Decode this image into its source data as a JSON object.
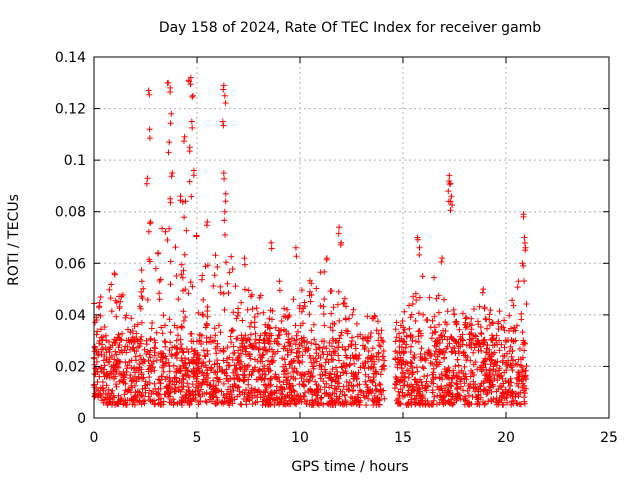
{
  "chart_data": {
    "type": "scatter",
    "title": "Day 158 of 2024, Rate Of TEC Index for receiver gamb",
    "xlabel": "GPS time / hours",
    "ylabel": "ROTI / TECUs",
    "xlim": [
      0,
      25
    ],
    "ylim": [
      0,
      0.14
    ],
    "xticks": [
      0,
      5,
      10,
      15,
      20,
      25
    ],
    "xtick_labels": [
      "0",
      "5",
      "10",
      "15",
      "20",
      "25"
    ],
    "yticks": [
      0,
      0.02,
      0.04,
      0.06,
      0.08,
      0.1,
      0.12,
      0.14
    ],
    "ytick_labels": [
      "0",
      "0.02",
      "0.04",
      "0.06",
      "0.08",
      "0.1",
      "0.12",
      "0.14"
    ],
    "grid": true,
    "marker": "+",
    "color": "#ff0000",
    "data_gap_hours": [
      14.1,
      14.6
    ],
    "x_range_hours": [
      0,
      21.0
    ],
    "typical_band": [
      0.005,
      0.03
    ],
    "envelope": [
      {
        "x": 0.0,
        "y": 0.045
      },
      {
        "x": 0.5,
        "y": 0.05
      },
      {
        "x": 1.0,
        "y": 0.06
      },
      {
        "x": 1.5,
        "y": 0.045
      },
      {
        "x": 2.0,
        "y": 0.04
      },
      {
        "x": 2.5,
        "y": 0.08
      },
      {
        "x": 3.0,
        "y": 0.06
      },
      {
        "x": 3.5,
        "y": 0.1
      },
      {
        "x": 4.0,
        "y": 0.07
      },
      {
        "x": 4.5,
        "y": 0.11
      },
      {
        "x": 5.0,
        "y": 0.07
      },
      {
        "x": 5.5,
        "y": 0.06
      },
      {
        "x": 6.0,
        "y": 0.07
      },
      {
        "x": 6.5,
        "y": 0.08
      },
      {
        "x": 7.0,
        "y": 0.05
      },
      {
        "x": 8.0,
        "y": 0.05
      },
      {
        "x": 9.0,
        "y": 0.045
      },
      {
        "x": 10.0,
        "y": 0.05
      },
      {
        "x": 11.0,
        "y": 0.06
      },
      {
        "x": 12.0,
        "y": 0.05
      },
      {
        "x": 13.0,
        "y": 0.04
      },
      {
        "x": 14.0,
        "y": 0.04
      },
      {
        "x": 15.0,
        "y": 0.04
      },
      {
        "x": 16.0,
        "y": 0.06
      },
      {
        "x": 17.0,
        "y": 0.05
      },
      {
        "x": 18.0,
        "y": 0.04
      },
      {
        "x": 19.0,
        "y": 0.045
      },
      {
        "x": 20.0,
        "y": 0.04
      },
      {
        "x": 21.0,
        "y": 0.06
      }
    ],
    "spikes": [
      {
        "x": 2.65,
        "y": 0.127
      },
      {
        "x": 2.7,
        "y": 0.112
      },
      {
        "x": 2.6,
        "y": 0.093
      },
      {
        "x": 2.75,
        "y": 0.076
      },
      {
        "x": 3.1,
        "y": 0.064
      },
      {
        "x": 3.6,
        "y": 0.13
      },
      {
        "x": 3.7,
        "y": 0.128
      },
      {
        "x": 3.75,
        "y": 0.118
      },
      {
        "x": 3.65,
        "y": 0.107
      },
      {
        "x": 3.8,
        "y": 0.095
      },
      {
        "x": 3.7,
        "y": 0.085
      },
      {
        "x": 4.2,
        "y": 0.086
      },
      {
        "x": 4.4,
        "y": 0.109
      },
      {
        "x": 4.6,
        "y": 0.131
      },
      {
        "x": 4.7,
        "y": 0.132
      },
      {
        "x": 4.8,
        "y": 0.125
      },
      {
        "x": 4.75,
        "y": 0.115
      },
      {
        "x": 4.65,
        "y": 0.105
      },
      {
        "x": 4.85,
        "y": 0.096
      },
      {
        "x": 5.5,
        "y": 0.076
      },
      {
        "x": 6.3,
        "y": 0.129
      },
      {
        "x": 6.35,
        "y": 0.125
      },
      {
        "x": 6.25,
        "y": 0.115
      },
      {
        "x": 6.3,
        "y": 0.095
      },
      {
        "x": 6.4,
        "y": 0.087
      },
      {
        "x": 6.35,
        "y": 0.08
      },
      {
        "x": 7.3,
        "y": 0.062
      },
      {
        "x": 8.6,
        "y": 0.068
      },
      {
        "x": 9.0,
        "y": 0.053
      },
      {
        "x": 9.8,
        "y": 0.066
      },
      {
        "x": 11.3,
        "y": 0.062
      },
      {
        "x": 11.9,
        "y": 0.074
      },
      {
        "x": 12.0,
        "y": 0.068
      },
      {
        "x": 15.7,
        "y": 0.07
      },
      {
        "x": 15.8,
        "y": 0.066
      },
      {
        "x": 16.9,
        "y": 0.062
      },
      {
        "x": 17.25,
        "y": 0.094
      },
      {
        "x": 17.3,
        "y": 0.091
      },
      {
        "x": 17.2,
        "y": 0.088
      },
      {
        "x": 17.35,
        "y": 0.086
      },
      {
        "x": 17.3,
        "y": 0.084
      },
      {
        "x": 18.9,
        "y": 0.05
      },
      {
        "x": 20.6,
        "y": 0.053
      },
      {
        "x": 20.85,
        "y": 0.079
      },
      {
        "x": 20.9,
        "y": 0.07
      },
      {
        "x": 20.95,
        "y": 0.066
      },
      {
        "x": 20.8,
        "y": 0.06
      }
    ]
  }
}
